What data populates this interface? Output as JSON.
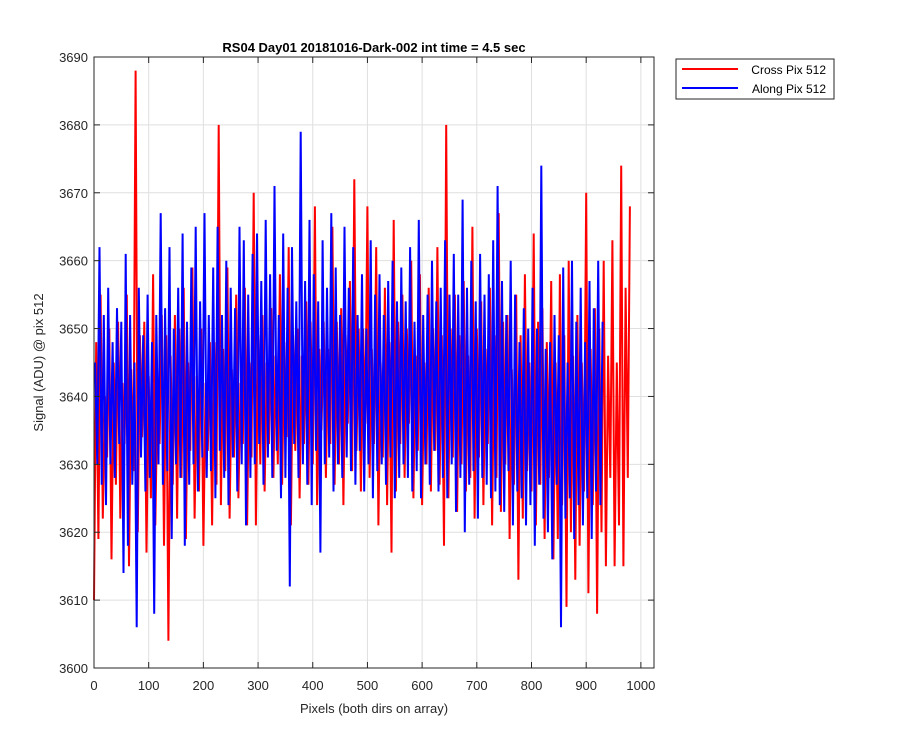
{
  "chart_data": {
    "type": "line",
    "title": "RS04 Day01 20181016-Dark-002 int time = 4.5 sec",
    "xlabel": "Pixels (both dirs on array)",
    "ylabel": "Signal (ADU) @ pix 512",
    "xlim": [
      0,
      1024
    ],
    "ylim": [
      3600,
      3690
    ],
    "x_ticks": [
      0,
      100,
      200,
      300,
      400,
      500,
      600,
      700,
      800,
      900,
      1000
    ],
    "y_ticks": [
      3600,
      3610,
      3620,
      3630,
      3640,
      3650,
      3660,
      3670,
      3680,
      3690
    ],
    "x_tick_labels": [
      "0",
      "100",
      "200",
      "300",
      "400",
      "500",
      "600",
      "700",
      "800",
      "900",
      "1000"
    ],
    "y_tick_labels": [
      "3600",
      "3610",
      "3620",
      "3630",
      "3640",
      "3650",
      "3660",
      "3670",
      "3680",
      "3690"
    ],
    "grid": true,
    "legend_position": "outside-top-right",
    "series": [
      {
        "name": "Cross Pix 512",
        "color": "#ff0000",
        "x_start": 0,
        "x_step": 4,
        "values": [
          3610,
          3648,
          3619,
          3655,
          3622,
          3640,
          3631,
          3650,
          3616,
          3645,
          3627,
          3651,
          3622,
          3642,
          3633,
          3655,
          3615,
          3644,
          3629,
          3688,
          3620,
          3649,
          3634,
          3651,
          3617,
          3643,
          3625,
          3658,
          3621,
          3640,
          3633,
          3652,
          3618,
          3649,
          3604,
          3646,
          3627,
          3652,
          3622,
          3650,
          3628,
          3656,
          3619,
          3645,
          3632,
          3659,
          3622,
          3643,
          3626,
          3650,
          3618,
          3642,
          3632,
          3648,
          3621,
          3648,
          3627,
          3680,
          3624,
          3647,
          3629,
          3659,
          3622,
          3644,
          3631,
          3655,
          3625,
          3642,
          3633,
          3656,
          3621,
          3645,
          3631,
          3670,
          3621,
          3649,
          3630,
          3652,
          3626,
          3645,
          3633,
          3653,
          3628,
          3646,
          3630,
          3658,
          3627,
          3648,
          3634,
          3662,
          3621,
          3649,
          3632,
          3650,
          3625,
          3646,
          3633,
          3654,
          3627,
          3651,
          3630,
          3668,
          3624,
          3647,
          3635,
          3651,
          3628,
          3647,
          3633,
          3665,
          3627,
          3651,
          3630,
          3653,
          3624,
          3649,
          3636,
          3657,
          3629,
          3672,
          3632,
          3650,
          3626,
          3650,
          3636,
          3668,
          3628,
          3647,
          3633,
          3662,
          3621,
          3645,
          3631,
          3656,
          3624,
          3648,
          3617,
          3666,
          3626,
          3651,
          3633,
          3655,
          3628,
          3650,
          3636,
          3660,
          3625,
          3646,
          3632,
          3658,
          3624,
          3645,
          3630,
          3656,
          3626,
          3650,
          3632,
          3662,
          3627,
          3649,
          3618,
          3680,
          3625,
          3650,
          3631,
          3655,
          3623,
          3649,
          3630,
          3657,
          3626,
          3646,
          3628,
          3665,
          3622,
          3650,
          3631,
          3654,
          3624,
          3647,
          3633,
          3656,
          3621,
          3649,
          3628,
          3667,
          3623,
          3651,
          3630,
          3652,
          3619,
          3644,
          3627,
          3655,
          3613,
          3649,
          3622,
          3658,
          3629,
          3645,
          3626,
          3664,
          3621,
          3651,
          3627,
          3653,
          3619,
          3648,
          3628,
          3657,
          3616,
          3645,
          3619,
          3658,
          3624,
          3649,
          3609,
          3660,
          3620,
          3646,
          3613,
          3652,
          3618,
          3645,
          3626,
          3670,
          3611,
          3647,
          3624,
          3653,
          3608,
          3650,
          3620,
          3660,
          3615,
          3646,
          3628,
          3663,
          3615,
          3645,
          3621,
          3674,
          3615,
          3656,
          3628,
          3668
        ]
      },
      {
        "name": "Along Pix 512",
        "color": "#0000ff",
        "x_start": 2,
        "x_step": 4,
        "values": [
          3645,
          3630,
          3662,
          3627,
          3652,
          3624,
          3656,
          3630,
          3648,
          3628,
          3653,
          3633,
          3651,
          3614,
          3661,
          3618,
          3652,
          3627,
          3645,
          3606,
          3656,
          3631,
          3649,
          3626,
          3655,
          3628,
          3648,
          3608,
          3652,
          3630,
          3667,
          3627,
          3653,
          3629,
          3662,
          3619,
          3650,
          3630,
          3656,
          3628,
          3664,
          3618,
          3651,
          3627,
          3659,
          3630,
          3665,
          3626,
          3654,
          3631,
          3667,
          3628,
          3652,
          3629,
          3659,
          3625,
          3665,
          3632,
          3652,
          3628,
          3660,
          3624,
          3656,
          3631,
          3653,
          3626,
          3665,
          3630,
          3663,
          3621,
          3655,
          3628,
          3661,
          3630,
          3664,
          3633,
          3657,
          3627,
          3666,
          3631,
          3658,
          3628,
          3671,
          3632,
          3652,
          3625,
          3664,
          3628,
          3656,
          3612,
          3662,
          3633,
          3654,
          3628,
          3679,
          3630,
          3657,
          3627,
          3666,
          3624,
          3658,
          3632,
          3654,
          3617,
          3663,
          3630,
          3656,
          3631,
          3667,
          3626,
          3659,
          3630,
          3652,
          3628,
          3665,
          3631,
          3656,
          3629,
          3662,
          3627,
          3652,
          3632,
          3658,
          3626,
          3650,
          3630,
          3663,
          3625,
          3655,
          3629,
          3658,
          3630,
          3652,
          3627,
          3657,
          3631,
          3660,
          3625,
          3654,
          3628,
          3659,
          3630,
          3654,
          3628,
          3662,
          3626,
          3651,
          3629,
          3666,
          3625,
          3652,
          3630,
          3655,
          3627,
          3660,
          3632,
          3654,
          3626,
          3656,
          3628,
          3663,
          3625,
          3655,
          3630,
          3661,
          3623,
          3655,
          3628,
          3669,
          3620,
          3656,
          3627,
          3660,
          3629,
          3654,
          3622,
          3661,
          3628,
          3655,
          3627,
          3658,
          3625,
          3663,
          3626,
          3671,
          3624,
          3657,
          3623,
          3652,
          3629,
          3660,
          3621,
          3655,
          3626,
          3648,
          3625,
          3653,
          3621,
          3650,
          3624,
          3656,
          3618,
          3650,
          3627,
          3674,
          3622,
          3647,
          3620,
          3648,
          3616,
          3652,
          3627,
          3649,
          3606,
          3659,
          3622,
          3645,
          3625,
          3660,
          3619,
          3651,
          3624,
          3656,
          3621,
          3648,
          3625,
          3657,
          3619,
          3653,
          3626,
          3660,
          3624,
          3651
        ]
      }
    ]
  }
}
